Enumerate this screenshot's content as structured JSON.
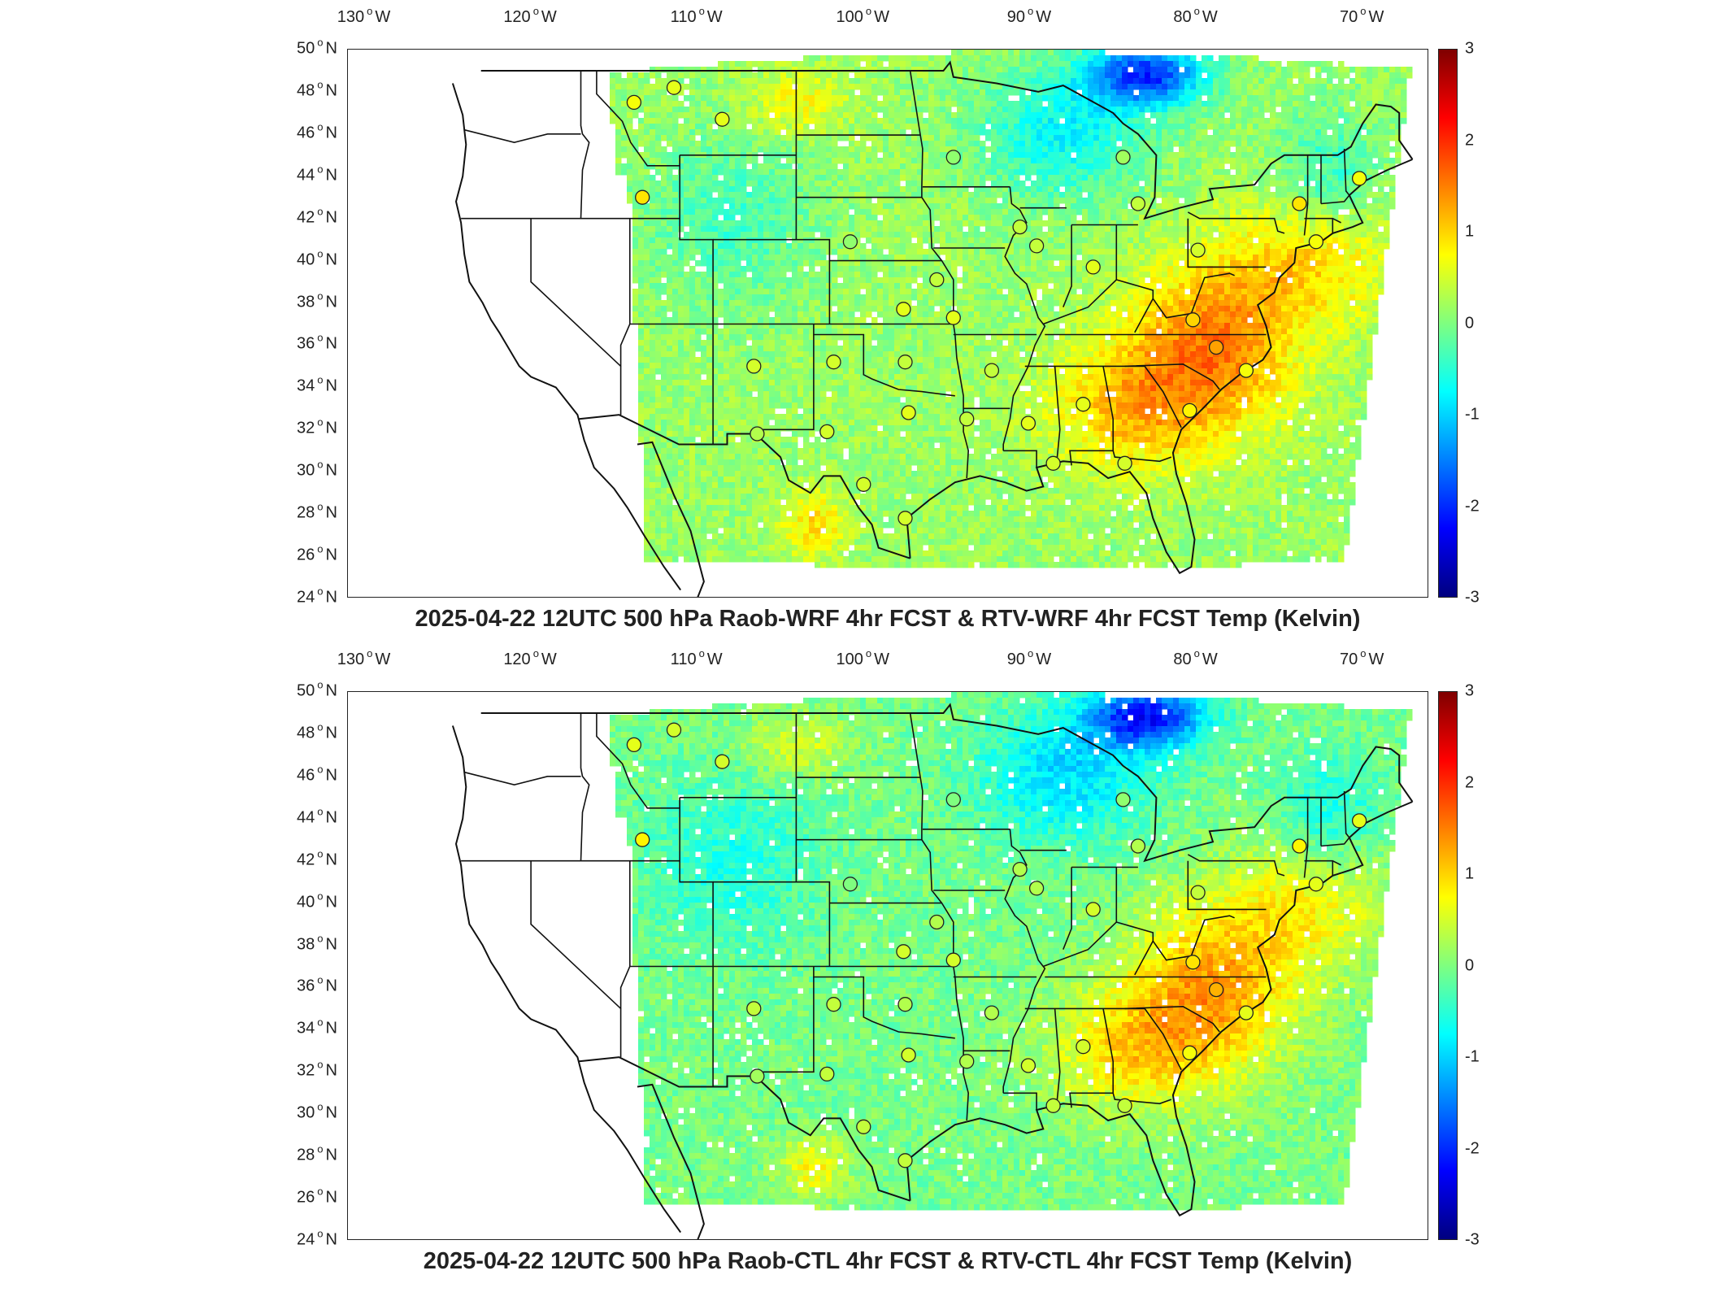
{
  "colors": {
    "land_outline": "#111111",
    "station_marker_edge": "#222222",
    "colormap": [
      "#00007f",
      "#0000ff",
      "#007fff",
      "#00ffff",
      "#7fff7f",
      "#ffff00",
      "#ff7f00",
      "#ff0000",
      "#7f0000"
    ]
  },
  "map": {
    "projection": "lat-lon CONUS",
    "lon_ticks": [
      "130",
      "120",
      "110",
      "100",
      "90",
      "80",
      "70"
    ],
    "lon_hemisphere": "W",
    "lat_ticks": [
      "50",
      "48",
      "46",
      "44",
      "42",
      "40",
      "38",
      "36",
      "34",
      "32",
      "30",
      "28",
      "26",
      "24"
    ],
    "lat_hemisphere": "N",
    "colorbar_ticks": [
      "3",
      "2",
      "1",
      "0",
      "-1",
      "-2",
      "-3"
    ],
    "color_range": [
      -3,
      3
    ]
  },
  "panels": [
    {
      "title": "2025-04-22 12UTC 500 hPa Raob-WRF 4hr FCST & RTV-WRF 4hr FCST Temp (Kelvin)"
    },
    {
      "title": "2025-04-22 12UTC 500 hPa Raob-CTL 4hr FCST & RTV-CTL 4hr FCST Temp (Kelvin)"
    }
  ]
}
